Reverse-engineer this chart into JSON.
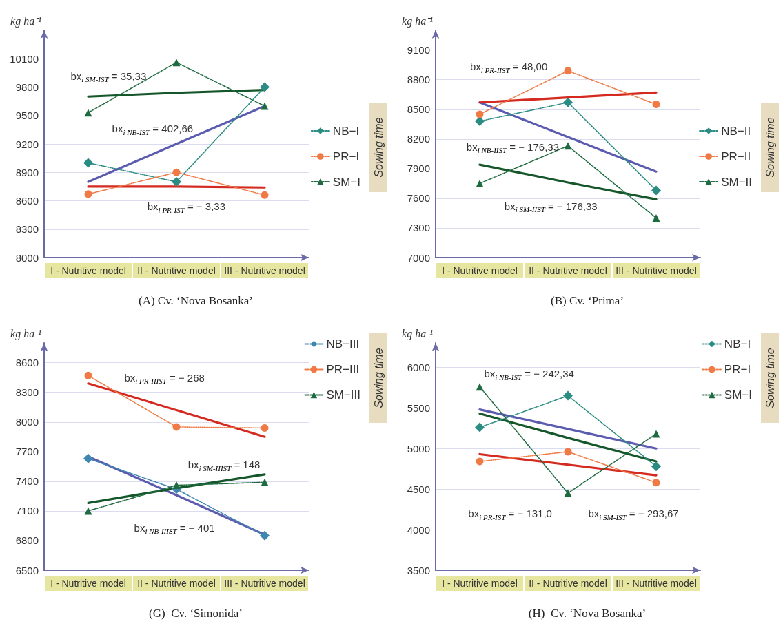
{
  "chart_data": [
    {
      "type": "line",
      "title": "(A) Cv. ‘Nova Bosanka’",
      "ylabel": "kg ha⁻¹",
      "legend_title": "Sowing time",
      "legend": "right",
      "grid": "y",
      "categories": [
        "I - Nutritive model",
        "II - Nutritive model",
        "III - Nutritive model"
      ],
      "ylim": [
        8000,
        10400
      ],
      "yticks": [
        8000,
        8300,
        8600,
        8900,
        9200,
        9500,
        9800,
        10100
      ],
      "series": [
        {
          "name": "NB−I",
          "color": "#2a8c82",
          "values": [
            9000,
            8800,
            9800
          ],
          "marker": "diamond",
          "line_style": "dotted"
        },
        {
          "name": "PR−I",
          "color": "#f07a45",
          "values": [
            8670,
            8900,
            8660
          ],
          "marker": "circle",
          "line_style": "dotted"
        },
        {
          "name": "SM−I",
          "color": "#1e6b40",
          "values": [
            9530,
            10060,
            9600
          ],
          "marker": "triangle",
          "line_style": "dotted"
        },
        {
          "color": "#5b5bb0",
          "values": [
            8800,
            9200,
            9600
          ],
          "marker": "none",
          "line_style": "solid"
        },
        {
          "color": "#d42a20",
          "values": [
            8750,
            8750,
            8740
          ],
          "marker": "none",
          "line_style": "solid"
        },
        {
          "color": "#15572a",
          "values": [
            9700,
            9740,
            9770
          ],
          "marker": "none",
          "line_style": "solid"
        }
      ],
      "annotations": [
        "bx$_{i SM-IST}$ = 35,33",
        "bx$_{i NB-IST}$ = 402,66",
        "bx$_{i PR-IST}$ = − 3,33"
      ]
    },
    {
      "type": "line",
      "title": "(B) Cv. ‘Prima’",
      "ylabel": "kg ha⁻¹",
      "legend_title": "Sowing time",
      "legend": "right",
      "grid": "y",
      "categories": [
        "I - Nutritive model",
        "II - Nutritive model",
        "III - Nutritive model"
      ],
      "ylim": [
        7000,
        9300
      ],
      "yticks": [
        7000,
        7300,
        7600,
        7900,
        8200,
        8500,
        8800,
        9100
      ],
      "series": [
        {
          "name": "NB−II",
          "color": "#2a8c82",
          "values": [
            8380,
            8570,
            7680
          ],
          "marker": "diamond",
          "line_style": "dotted"
        },
        {
          "name": "PR−II",
          "color": "#f07a45",
          "values": [
            8450,
            8890,
            8550
          ],
          "marker": "circle",
          "line_style": "dotted"
        },
        {
          "name": "SM−II",
          "color": "#1e6b40",
          "values": [
            7750,
            8130,
            7400
          ],
          "marker": "triangle",
          "line_style": "dotted"
        },
        {
          "color": "#5b5bb0",
          "values": [
            8570,
            8220,
            7870
          ],
          "marker": "none",
          "line_style": "solid"
        },
        {
          "color": "#d42a20",
          "values": [
            8570,
            8620,
            8670
          ],
          "marker": "none",
          "line_style": "solid"
        },
        {
          "color": "#15572a",
          "values": [
            7940,
            7760,
            7590
          ],
          "marker": "none",
          "line_style": "solid"
        }
      ],
      "annotations": [
        "bx$_{i PR-IIST}$ = 48,00",
        "bx$_{i NB-IIST}$ = − 176,33",
        "bx$_{i SM-IIST}$ = − 176,33"
      ]
    },
    {
      "type": "line",
      "title": "(G)  Cv. ‘Simonida’",
      "ylabel": "kg ha⁻¹",
      "legend_title": "Sowing time",
      "legend": "top right",
      "grid": "y",
      "categories": [
        "I - Nutritive model",
        "II - Nutritive model",
        "III - Nutritive model"
      ],
      "ylim": [
        6500,
        8800
      ],
      "yticks": [
        6500,
        6800,
        7100,
        7400,
        7700,
        8000,
        8300,
        8600
      ],
      "series": [
        {
          "name": "NB−III",
          "color": "#3f86b0",
          "values": [
            7630,
            7320,
            6850
          ],
          "marker": "diamond",
          "line_style": "dotted"
        },
        {
          "name": "PR−III",
          "color": "#f07a45",
          "values": [
            8470,
            7950,
            7940
          ],
          "marker": "circle",
          "line_style": "dotted"
        },
        {
          "name": "SM−III",
          "color": "#1e6b40",
          "values": [
            7100,
            7360,
            7390
          ],
          "marker": "triangle",
          "line_style": "dotted"
        },
        {
          "color": "#5b5bb0",
          "values": [
            7650,
            7260,
            6860
          ],
          "marker": "none",
          "line_style": "solid"
        },
        {
          "color": "#d42a20",
          "values": [
            8390,
            8120,
            7850
          ],
          "marker": "none",
          "line_style": "solid"
        },
        {
          "color": "#15572a",
          "values": [
            7180,
            7330,
            7470
          ],
          "marker": "none",
          "line_style": "solid"
        }
      ],
      "annotations": [
        "bx$_{i PR-IIIST}$ = − 268",
        "bx$_{i SM-IIIST}$ = 148",
        "bx$_{i NB-IIIST}$ = − 401"
      ]
    },
    {
      "type": "line",
      "title": "(H)  Cv. ‘Nova Bosanka’",
      "ylabel": "kg ha⁻¹",
      "legend_title": "Sowing time",
      "legend": "top right",
      "grid": "y",
      "categories": [
        "I - Nutritive model",
        "II - Nutritive model",
        "III - Nutritive model"
      ],
      "ylim": [
        3500,
        6300
      ],
      "yticks": [
        3500,
        4000,
        4500,
        5000,
        5500,
        6000
      ],
      "series": [
        {
          "name": "NB−I",
          "color": "#2a8c82",
          "values": [
            5260,
            5650,
            4780
          ],
          "marker": "diamond",
          "line_style": "dotted"
        },
        {
          "name": "PR−I",
          "color": "#f07a45",
          "values": [
            4840,
            4960,
            4580
          ],
          "marker": "circle",
          "line_style": "dotted"
        },
        {
          "name": "SM−I",
          "color": "#1e6b40",
          "values": [
            5760,
            4450,
            5180
          ],
          "marker": "triangle",
          "line_style": "dotted"
        },
        {
          "color": "#5b5bb0",
          "values": [
            5480,
            5240,
            5000
          ],
          "marker": "none",
          "line_style": "solid"
        },
        {
          "color": "#d42a20",
          "values": [
            4930,
            4800,
            4670
          ],
          "marker": "none",
          "line_style": "solid"
        },
        {
          "color": "#15572a",
          "values": [
            5430,
            5130,
            4840
          ],
          "marker": "none",
          "line_style": "solid"
        }
      ],
      "annotations": [
        "bx$_{i NB-IST}$ = − 242,34",
        "bx$_{i PR-IST}$ = − 131,0",
        "bx$_{i SM-IST}$ = − 293,67"
      ]
    }
  ]
}
